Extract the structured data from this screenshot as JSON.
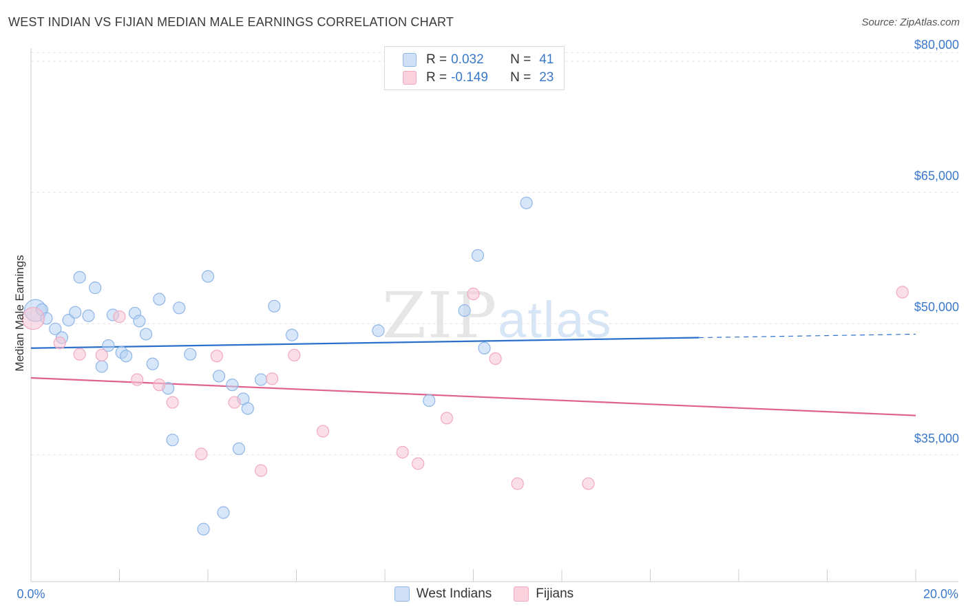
{
  "title": "WEST INDIAN VS FIJIAN MEDIAN MALE EARNINGS CORRELATION CHART",
  "source": "Source: ZipAtlas.com",
  "watermark": {
    "part1": "ZIP",
    "part2": "atlas"
  },
  "legend": {
    "rows": [
      {
        "r_label": "R =",
        "r_value": "0.032",
        "n_label": "N =",
        "n_value": "41",
        "color": "#b7d1f2"
      },
      {
        "r_label": "R =",
        "r_value": "-0.149",
        "n_label": "N =",
        "n_value": "23",
        "color": "#f7c5d5"
      }
    ]
  },
  "bottom_legend": {
    "series1": "West Indians",
    "series2": "Fijians"
  },
  "chart_data": {
    "type": "scatter",
    "title": "WEST INDIAN VS FIJIAN MEDIAN MALE EARNINGS CORRELATION CHART",
    "xlabel": "",
    "ylabel": "Median Male Earnings",
    "xlim": [
      0,
      20
    ],
    "ylim": [
      20500,
      81500
    ],
    "x_tick_labels": {
      "left": "0.0%",
      "right": "20.0%"
    },
    "y_ticks": [
      {
        "value": 80000,
        "label": "$80,000"
      },
      {
        "value": 65000,
        "label": "$65,000"
      },
      {
        "value": 50000,
        "label": "$50,000"
      },
      {
        "value": 35000,
        "label": "$35,000"
      }
    ],
    "series": [
      {
        "name": "West Indians",
        "color": "#8fb6e8",
        "line_color": "#2a6fcc",
        "trend": {
          "x0": 0,
          "y0": 47200,
          "x1": 15.1,
          "y1": 48400,
          "dash_x1": 20,
          "dash_y1": 48800
        },
        "points": [
          {
            "x": 0.1,
            "y": 51500,
            "big": true
          },
          {
            "x": 0.25,
            "y": 51600
          },
          {
            "x": 0.35,
            "y": 50600
          },
          {
            "x": 0.55,
            "y": 49400
          },
          {
            "x": 0.7,
            "y": 48400
          },
          {
            "x": 0.85,
            "y": 50400
          },
          {
            "x": 1.0,
            "y": 51300
          },
          {
            "x": 1.1,
            "y": 55300
          },
          {
            "x": 1.3,
            "y": 50900
          },
          {
            "x": 1.45,
            "y": 54100
          },
          {
            "x": 1.6,
            "y": 45100
          },
          {
            "x": 1.75,
            "y": 47500
          },
          {
            "x": 1.85,
            "y": 51000
          },
          {
            "x": 2.05,
            "y": 46700
          },
          {
            "x": 2.15,
            "y": 46300
          },
          {
            "x": 2.35,
            "y": 51200
          },
          {
            "x": 2.45,
            "y": 50300
          },
          {
            "x": 2.6,
            "y": 48800
          },
          {
            "x": 2.75,
            "y": 45400
          },
          {
            "x": 2.9,
            "y": 52800
          },
          {
            "x": 3.1,
            "y": 42600
          },
          {
            "x": 3.2,
            "y": 36700
          },
          {
            "x": 3.35,
            "y": 51800
          },
          {
            "x": 3.6,
            "y": 46500
          },
          {
            "x": 3.9,
            "y": 26500
          },
          {
            "x": 4.0,
            "y": 55400
          },
          {
            "x": 4.25,
            "y": 44000
          },
          {
            "x": 4.35,
            "y": 28400
          },
          {
            "x": 4.55,
            "y": 43000
          },
          {
            "x": 4.7,
            "y": 35700
          },
          {
            "x": 4.8,
            "y": 41400
          },
          {
            "x": 4.9,
            "y": 40300
          },
          {
            "x": 5.2,
            "y": 43600
          },
          {
            "x": 5.5,
            "y": 52000
          },
          {
            "x": 5.9,
            "y": 48700
          },
          {
            "x": 7.85,
            "y": 49200
          },
          {
            "x": 9.0,
            "y": 41200
          },
          {
            "x": 9.8,
            "y": 51500
          },
          {
            "x": 10.1,
            "y": 57800
          },
          {
            "x": 10.25,
            "y": 47200
          },
          {
            "x": 11.2,
            "y": 63800
          }
        ]
      },
      {
        "name": "Fijians",
        "color": "#f2a9c0",
        "line_color": "#e0628c",
        "trend": {
          "x0": 0,
          "y0": 43800,
          "x1": 20,
          "y1": 39500
        },
        "points": [
          {
            "x": 0.05,
            "y": 50600,
            "big": true
          },
          {
            "x": 0.65,
            "y": 47800
          },
          {
            "x": 1.1,
            "y": 46500
          },
          {
            "x": 1.6,
            "y": 46400
          },
          {
            "x": 2.0,
            "y": 50800
          },
          {
            "x": 2.4,
            "y": 43600
          },
          {
            "x": 2.9,
            "y": 43000
          },
          {
            "x": 3.2,
            "y": 41000
          },
          {
            "x": 3.85,
            "y": 35100
          },
          {
            "x": 4.2,
            "y": 46300
          },
          {
            "x": 4.6,
            "y": 41000
          },
          {
            "x": 5.2,
            "y": 33200
          },
          {
            "x": 5.45,
            "y": 43700
          },
          {
            "x": 5.95,
            "y": 46400
          },
          {
            "x": 6.6,
            "y": 37700
          },
          {
            "x": 8.4,
            "y": 35300
          },
          {
            "x": 8.75,
            "y": 34000
          },
          {
            "x": 9.4,
            "y": 39200
          },
          {
            "x": 10.0,
            "y": 53400
          },
          {
            "x": 10.5,
            "y": 46000
          },
          {
            "x": 11.0,
            "y": 31700
          },
          {
            "x": 12.6,
            "y": 31700
          },
          {
            "x": 19.7,
            "y": 53600
          }
        ]
      }
    ]
  }
}
